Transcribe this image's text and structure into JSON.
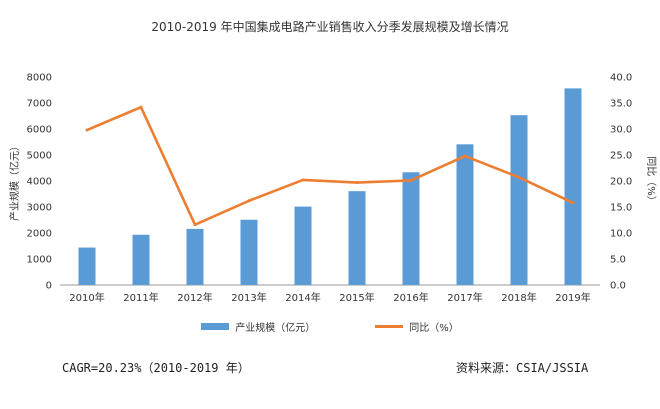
{
  "colors": {
    "bar": "#5b9bd5",
    "line": "#ed7d31",
    "axis": "#999999"
  },
  "chart_data": {
    "type": "bar",
    "title": "2010-2019 年中国集成电路产业销售收入分季发展规模及增长情况",
    "categories": [
      "2010年",
      "2011年",
      "2012年",
      "2013年",
      "2014年",
      "2015年",
      "2016年",
      "2017年",
      "2018年",
      "2019年"
    ],
    "ylabel": "产业规模（亿元）",
    "y2label": "同比（%）",
    "ylim": [
      0,
      8000
    ],
    "y2lim": [
      0,
      40
    ],
    "yticks": [
      "0",
      "1000",
      "2000",
      "3000",
      "4000",
      "5000",
      "6000",
      "7000",
      "8000"
    ],
    "y2ticks": [
      "0.0",
      "5.0",
      "10.0",
      "15.0",
      "20.0",
      "25.0",
      "30.0",
      "35.0",
      "40.0"
    ],
    "series": [
      {
        "name": "产业规模（亿元）",
        "type": "bar",
        "axis": "left",
        "values": [
          1440,
          1933,
          2158,
          2509,
          3015,
          3609,
          4336,
          5411,
          6532,
          7562
        ]
      },
      {
        "name": "同比（%）",
        "type": "line",
        "axis": "right",
        "values": [
          29.8,
          34.2,
          11.6,
          16.2,
          20.2,
          19.7,
          20.1,
          24.8,
          20.7,
          15.8
        ]
      }
    ],
    "legend_position": "bottom",
    "grid": false
  },
  "footer": {
    "cagr": "CAGR=20.23%（2010-2019 年）",
    "source": "资料来源：CSIA/JSSIA"
  }
}
